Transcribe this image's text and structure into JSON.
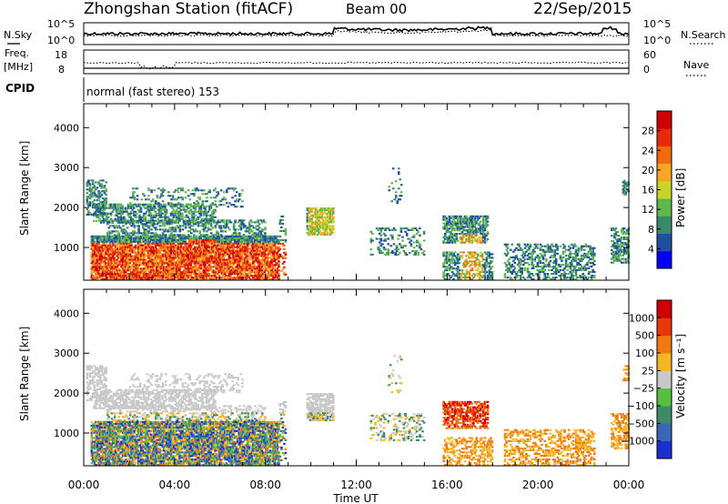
{
  "header": {
    "station": "Zhongshan Station (fitACF)",
    "beam": "Beam 00",
    "date": "22/Sep/2015"
  },
  "noise_panel": {
    "left_label": "N.Sky",
    "right_label": "N.Search",
    "tick_top": "10^5",
    "tick_bottom": "10^0"
  },
  "freq_panel": {
    "left_label_1": "Freq.",
    "left_label_2": "[MHz]",
    "left_tick_top": "18",
    "left_tick_bottom": "8",
    "right_label": "Nave",
    "right_tick_top": "60",
    "right_tick_bottom": "0"
  },
  "cpid": {
    "label": "CPID",
    "mode_text": "normal (fast stereo) 153"
  },
  "colors": {
    "power_scale": [
      "#0000ff",
      "#1e4fa0",
      "#3a8a6a",
      "#5fb84a",
      "#c8d42a",
      "#f5a623",
      "#f06a10",
      "#e82a0a",
      "#d00000"
    ],
    "velocity_scale": [
      "#1a2fd0",
      "#3a66b8",
      "#3d8a6a",
      "#55c040",
      "#c8c8c8",
      "#f5b623",
      "#f07a12",
      "#e8380a",
      "#d00000"
    ]
  },
  "chart_data": [
    {
      "type": "heatmap",
      "name": "power",
      "ylabel": "Slant Range [km]",
      "xlabel": "",
      "xlim": [
        0,
        24
      ],
      "ylim": [
        180,
        4600
      ],
      "yticks": [
        1000,
        2000,
        3000,
        4000
      ],
      "colorbar": {
        "label": "Power [dB]",
        "ticks": [
          4,
          8,
          12,
          16,
          20,
          24,
          28
        ],
        "range": [
          0,
          32
        ]
      }
    },
    {
      "type": "heatmap",
      "name": "velocity",
      "ylabel": "Slant Range [km]",
      "xlabel": "Time UT",
      "xlim": [
        0,
        24
      ],
      "ylim": [
        180,
        4600
      ],
      "yticks": [
        1000,
        2000,
        3000,
        4000
      ],
      "xticks": [
        "00:00",
        "04:00",
        "08:00",
        "12:00",
        "16:00",
        "20:00",
        "00:00"
      ],
      "colorbar": {
        "label": "Velocity [m s⁻¹]",
        "ticks": [
          "1000",
          "500",
          "100",
          "25",
          "−25",
          "−100",
          "−500",
          "−1000"
        ]
      }
    }
  ]
}
